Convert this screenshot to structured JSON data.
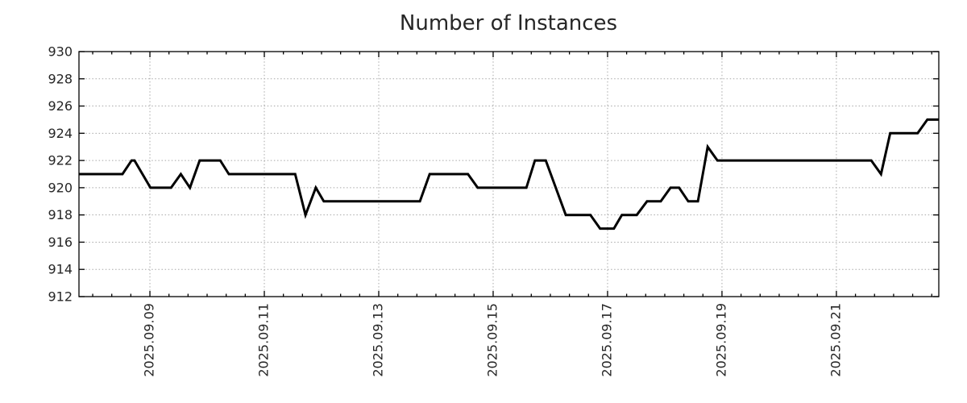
{
  "chart_data": {
    "type": "line",
    "title": "Number of Instances",
    "xlabel": "",
    "ylabel": "",
    "ylim": [
      912,
      930
    ],
    "grid": true,
    "legend": null,
    "x_axis_unit": "decimal day of 2025-09 (e.g. 9.5 = Sep 9 12:00)",
    "x_domain": [
      7.76,
      22.79
    ],
    "x_minor_tick_interval_days": 0.33333,
    "x_major_ticks": [
      {
        "day": 9,
        "label": "2025.09.09"
      },
      {
        "day": 11,
        "label": "2025.09.11"
      },
      {
        "day": 13,
        "label": "2025.09.13"
      },
      {
        "day": 15,
        "label": "2025.09.15"
      },
      {
        "day": 17,
        "label": "2025.09.17"
      },
      {
        "day": 19,
        "label": "2025.09.19"
      },
      {
        "day": 21,
        "label": "2025.09.21"
      }
    ],
    "y_ticks": [
      {
        "value": 930,
        "label": "930"
      },
      {
        "value": 928,
        "label": "928"
      },
      {
        "value": 926,
        "label": "926"
      },
      {
        "value": 924,
        "label": "924"
      },
      {
        "value": 922,
        "label": "922"
      },
      {
        "value": 920,
        "label": "920"
      },
      {
        "value": 918,
        "label": "918"
      },
      {
        "value": 916,
        "label": "916"
      },
      {
        "value": 914,
        "label": "914"
      },
      {
        "value": 912,
        "label": "912"
      }
    ],
    "colors": {
      "line": "#000000",
      "grid": "#a8a8a8",
      "axis": "#000000",
      "text": "#262626"
    },
    "line_width": 3,
    "points": [
      [
        7.76,
        921
      ],
      [
        8.52,
        921
      ],
      [
        8.68,
        922
      ],
      [
        8.73,
        922
      ],
      [
        9.01,
        920
      ],
      [
        9.37,
        920
      ],
      [
        9.54,
        921
      ],
      [
        9.7,
        920
      ],
      [
        9.87,
        922
      ],
      [
        10.23,
        922
      ],
      [
        10.38,
        921
      ],
      [
        11.54,
        921
      ],
      [
        11.72,
        918
      ],
      [
        11.9,
        920
      ],
      [
        12.04,
        919
      ],
      [
        13.72,
        919
      ],
      [
        13.89,
        921
      ],
      [
        14.56,
        921
      ],
      [
        14.73,
        920
      ],
      [
        15.58,
        920
      ],
      [
        15.73,
        922
      ],
      [
        15.92,
        922
      ],
      [
        16.27,
        918
      ],
      [
        16.7,
        918
      ],
      [
        16.87,
        917
      ],
      [
        17.11,
        917
      ],
      [
        17.25,
        918
      ],
      [
        17.51,
        918
      ],
      [
        17.69,
        919
      ],
      [
        17.93,
        919
      ],
      [
        18.1,
        920
      ],
      [
        18.25,
        920
      ],
      [
        18.41,
        919
      ],
      [
        18.58,
        919
      ],
      [
        18.75,
        923
      ],
      [
        18.92,
        922
      ],
      [
        21.61,
        922
      ],
      [
        21.78,
        921
      ],
      [
        21.94,
        924
      ],
      [
        22.42,
        924
      ],
      [
        22.59,
        925
      ],
      [
        22.79,
        925
      ]
    ]
  }
}
